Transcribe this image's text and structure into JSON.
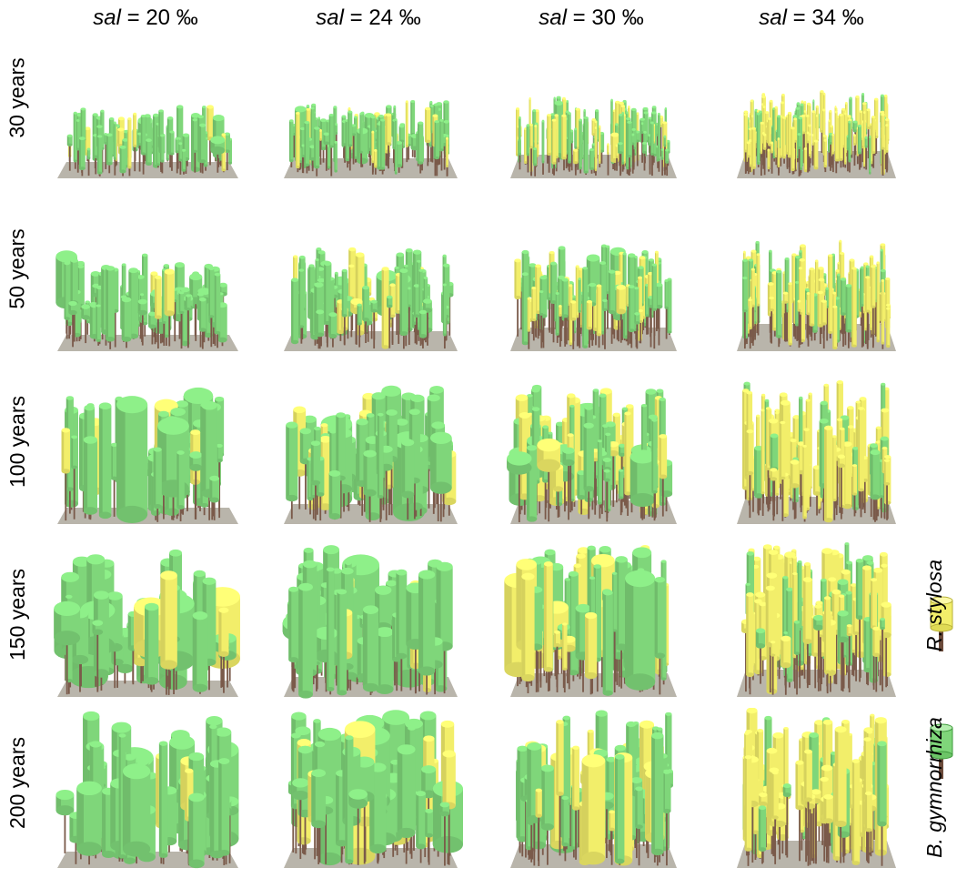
{
  "columns": [
    {
      "prefix": "sal",
      "value": " = 20 ‰"
    },
    {
      "prefix": "sal",
      "value": " = 24 ‰"
    },
    {
      "prefix": "sal",
      "value": " = 30 ‰"
    },
    {
      "prefix": "sal",
      "value": " = 34 ‰"
    }
  ],
  "rows": [
    {
      "label": "30 years"
    },
    {
      "label": "50 years"
    },
    {
      "label": "100 years"
    },
    {
      "label": "150 years"
    },
    {
      "label": "200 years"
    }
  ],
  "legend": [
    {
      "name": "R. stylosa",
      "color": "#f2ee6a"
    },
    {
      "name": "B. gymnorrhiza",
      "color": "#7fd67a"
    }
  ],
  "colors": {
    "yellow": "#f2ee6a",
    "green": "#7fd67a",
    "trunk": "#7a5a4a",
    "ground": "#b9b5ab"
  }
}
